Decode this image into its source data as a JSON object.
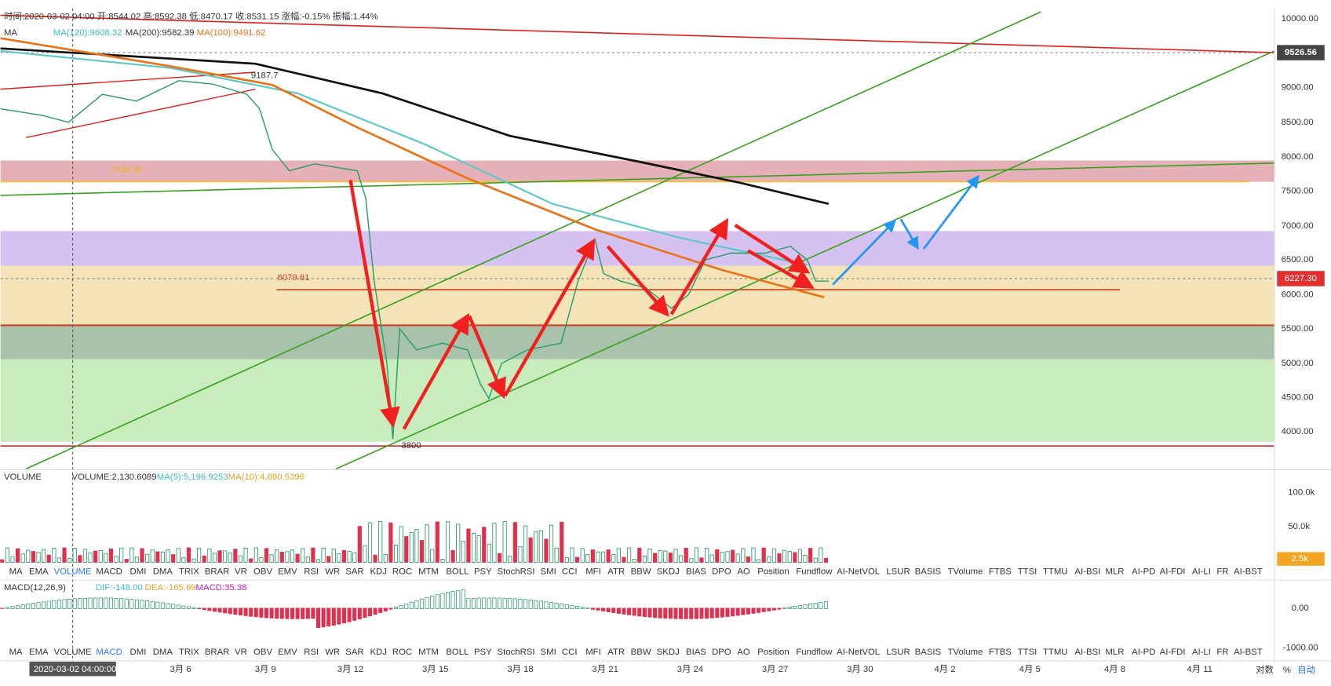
{
  "header": {
    "info": "时间:2020-03-02 04:00  开:8544.02  高:8592.38  低:8470.17  收:8531.15  涨幅:-0.15%  振幅:1.44%",
    "ma_label": "MA",
    "ma_legend": [
      "MA(120):9608.32",
      "MA(200):9582.39",
      "MA(100):9491.62"
    ]
  },
  "price_axis": [
    "10000.00",
    "9000.00",
    "8500.00",
    "8000.00",
    "7500.00",
    "7000.00",
    "6500.00",
    "6000.00",
    "5500.00",
    "5000.00",
    "4500.00",
    "4000.00"
  ],
  "current_price": "9526.56",
  "last_price": "6227.30",
  "price_labels": [
    "7638.90",
    "6079.61",
    "9187.7",
    "3800"
  ],
  "volume": {
    "label": "VOLUME",
    "legend": [
      "VOLUME:2,130.6089",
      "MA(5):5,196.9253",
      "MA(10):4,880.5396"
    ],
    "axis": [
      "100.0k",
      "50.0k"
    ],
    "current": "2.5k"
  },
  "macd": {
    "label": "MACD(12,26,9)",
    "legend": [
      "DIF:-148.00",
      "DEA:-165.69",
      "MACD:35.38"
    ],
    "axis": [
      "0.00",
      "-1000.00"
    ]
  },
  "indicator_tabs": [
    "MA",
    "EMA",
    "VOLUME",
    "MACD",
    "DMI",
    "DMA",
    "TRIX",
    "BRAR",
    "VR",
    "OBV",
    "EMV",
    "RSI",
    "WR",
    "SAR",
    "KDJ",
    "ROC",
    "MTM",
    "BOLL",
    "PSY",
    "StochRSI",
    "SMI",
    "CCI",
    "MFI",
    "ATR",
    "BBW",
    "SKDJ",
    "BIAS",
    "DPO",
    "AO",
    "Position",
    "Fundflow",
    "AI-NetVOL",
    "LSUR",
    "BASIS",
    "TVolume",
    "FTBS",
    "TTSI",
    "TTMU",
    "AI-BSI",
    "MLR",
    "AI-PD",
    "AI-FDI",
    "AI-LI",
    "FR",
    "AI-BST"
  ],
  "dates": {
    "cursor": "2020-03-02 04:00:00",
    "labels": [
      "3月 6",
      "3月 9",
      "3月 12",
      "3月 15",
      "3月 18",
      "3月 21",
      "3月 24",
      "3月 27",
      "3月 30",
      "4月 2",
      "4月 5",
      "4月 8",
      "4月 11"
    ]
  },
  "controls": [
    "对数",
    "%",
    "自动"
  ]
}
